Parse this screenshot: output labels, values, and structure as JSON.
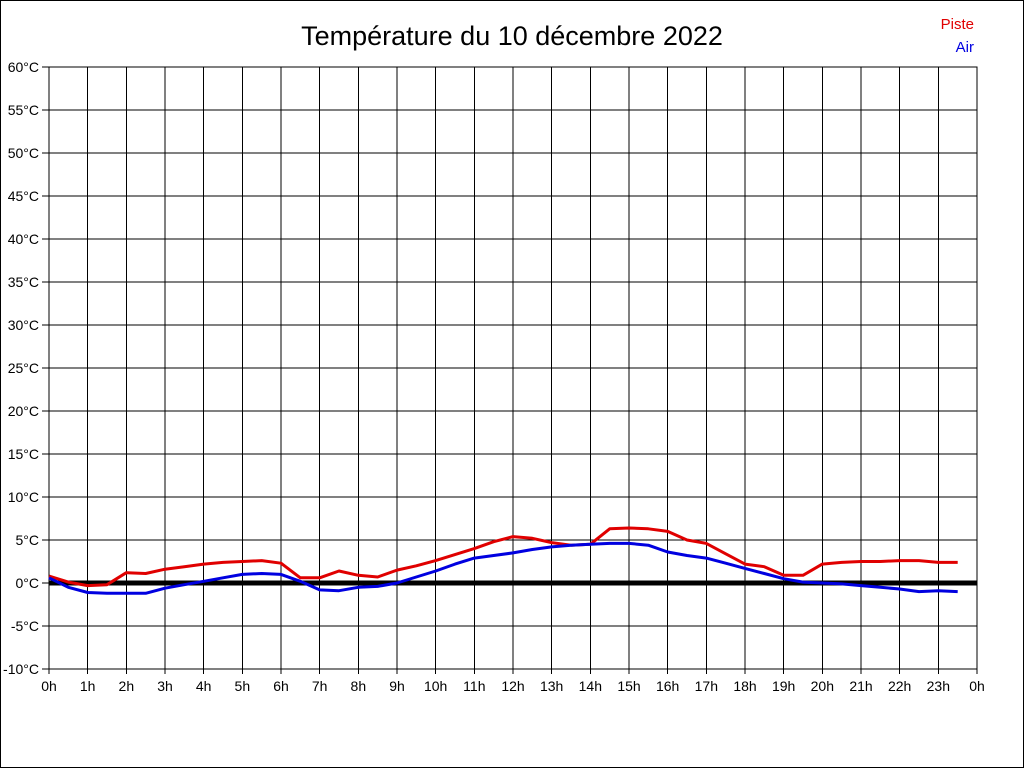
{
  "header": {
    "title": "Température du 10 décembre 2022"
  },
  "legend": {
    "items": [
      {
        "label": "Piste",
        "color": "#e00000"
      },
      {
        "label": "Air",
        "color": "#0000e0"
      }
    ]
  },
  "chart_data": {
    "type": "line",
    "title": "Température du 10 décembre 2022",
    "xlabel": "",
    "ylabel": "",
    "x_unit": "h",
    "xlim": [
      0,
      24
    ],
    "ylim": [
      -10,
      60
    ],
    "y_tick_step": 5,
    "x_tick_step": 1,
    "grid": true,
    "grid_color": "#000000",
    "zero_line": {
      "value": 0,
      "color": "#000000",
      "thickness": 5
    },
    "legend_position": "top-right",
    "y_tick_labels": [
      "60°C",
      "55°C",
      "50°C",
      "45°C",
      "40°C",
      "35°C",
      "30°C",
      "25°C",
      "20°C",
      "15°C",
      "10°C",
      "5°C",
      "0°C",
      "-5°C",
      "-10°C"
    ],
    "x_tick_labels": [
      "0h",
      "1h",
      "2h",
      "3h",
      "4h",
      "5h",
      "6h",
      "7h",
      "8h",
      "9h",
      "10h",
      "11h",
      "12h",
      "13h",
      "14h",
      "15h",
      "16h",
      "17h",
      "18h",
      "19h",
      "20h",
      "21h",
      "22h",
      "23h",
      "0h"
    ],
    "x": [
      0,
      0.5,
      1,
      1.5,
      2,
      2.5,
      3,
      3.5,
      4,
      4.5,
      5,
      5.5,
      6,
      6.5,
      7,
      7.5,
      8,
      8.5,
      9,
      9.5,
      10,
      10.5,
      11,
      11.5,
      12,
      12.5,
      13,
      13.5,
      14,
      14.5,
      15,
      15.5,
      16,
      16.5,
      17,
      17.5,
      18,
      18.5,
      19,
      19.5,
      20,
      20.5,
      21,
      21.5,
      22,
      22.5,
      23,
      23.5
    ],
    "series": [
      {
        "name": "Piste",
        "color": "#e00000",
        "values": [
          0.8,
          0.1,
          -0.3,
          -0.2,
          1.2,
          1.1,
          1.6,
          1.9,
          2.2,
          2.4,
          2.5,
          2.6,
          2.3,
          0.6,
          0.6,
          1.4,
          0.9,
          0.7,
          1.5,
          2.0,
          2.6,
          3.3,
          4.0,
          4.8,
          5.4,
          5.2,
          4.7,
          4.4,
          4.5,
          6.3,
          6.4,
          6.3,
          6.0,
          5.0,
          4.6,
          3.4,
          2.2,
          1.9,
          0.9,
          0.9,
          2.2,
          2.4,
          2.5,
          2.5,
          2.6,
          2.6,
          2.4,
          2.4
        ]
      },
      {
        "name": "Air",
        "color": "#0000e0",
        "values": [
          0.6,
          -0.5,
          -1.1,
          -1.2,
          -1.2,
          -1.2,
          -0.6,
          -0.2,
          0.2,
          0.6,
          1.0,
          1.1,
          1.0,
          0.2,
          -0.8,
          -0.9,
          -0.5,
          -0.4,
          0.0,
          0.7,
          1.4,
          2.2,
          2.9,
          3.2,
          3.5,
          3.9,
          4.2,
          4.4,
          4.5,
          4.6,
          4.6,
          4.4,
          3.6,
          3.2,
          2.9,
          2.3,
          1.7,
          1.1,
          0.5,
          0.1,
          0.0,
          -0.1,
          -0.3,
          -0.5,
          -0.7,
          -1.0,
          -0.9,
          -1.0
        ]
      }
    ]
  }
}
